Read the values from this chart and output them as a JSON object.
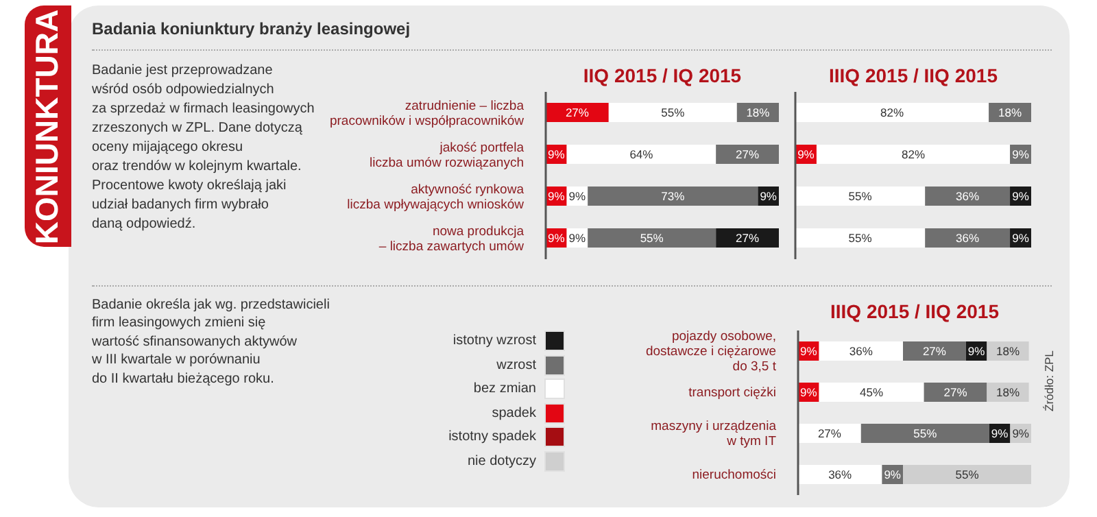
{
  "chart_data": [
    {
      "type": "bar",
      "orientation": "horizontal",
      "stacked": true,
      "title": "IIQ 2015 / IQ 2015",
      "tick_labels": "y",
      "xlim": [
        0,
        100
      ],
      "annotations": [
        "KONIUNKTURA",
        "Badania koniunktury branży leasingowej",
        "Badanie jest przeprowadzane\nwśród osób odpowiedzialnych\nza sprzedaż w firmach leasingowych\nzrzeszonych w ZPL. Dane dotyczą\noceny mijającego okresu\noraz trendów w kolejnym kwartale.\nProcentowe kwoty określają jaki\nudział badanych firm wybrało\ndaną odpowiedź."
      ],
      "categories": [
        "zatrudnienie – liczba\npracowników i współpracowników",
        "jakość portfela\nliczba umów rozwiązanych",
        "aktywność rynkowa\nliczba wpływających wniosków",
        "nowa produkcja\n– liczba zawartych umów"
      ],
      "series": [
        {
          "color": "#e30613",
          "values": [
            27,
            9,
            9,
            9
          ],
          "value_labels": [
            "27%",
            "9%",
            "9%",
            "9%"
          ]
        },
        {
          "color": "#ffffff",
          "values": [
            55,
            64,
            9,
            9
          ],
          "value_labels": [
            "55%",
            "64%",
            "9%",
            "9%"
          ]
        },
        {
          "color": "#6f6f6f",
          "values": [
            18,
            27,
            73,
            55
          ],
          "value_labels": [
            "18%",
            "27%",
            "73%",
            "55%"
          ]
        },
        {
          "color": "#1a1a1a",
          "values": [
            null,
            null,
            9,
            27
          ],
          "value_labels": [
            null,
            null,
            "9%",
            "27%"
          ]
        }
      ]
    },
    {
      "type": "bar",
      "orientation": "horizontal",
      "stacked": true,
      "title": "IIIQ 2015 / IIQ 2015",
      "tick_labels": false,
      "xlim": [
        0,
        100
      ],
      "categories": [
        null,
        null,
        null,
        null
      ],
      "series": [
        {
          "color": "#e30613",
          "values": [
            null,
            9,
            null,
            null
          ],
          "value_labels": [
            null,
            "9%",
            null,
            null
          ]
        },
        {
          "color": "#ffffff",
          "values": [
            82,
            82,
            55,
            55
          ],
          "value_labels": [
            "82%",
            "82%",
            "55%",
            "55%"
          ]
        },
        {
          "color": "#6f6f6f",
          "values": [
            18,
            9,
            36,
            36
          ],
          "value_labels": [
            "18%",
            "9%",
            "36%",
            "36%"
          ]
        },
        {
          "color": "#1a1a1a",
          "values": [
            null,
            null,
            9,
            9
          ],
          "value_labels": [
            null,
            null,
            "9%",
            "9%"
          ]
        }
      ]
    },
    {
      "type": "bar",
      "orientation": "horizontal",
      "stacked": true,
      "title": "IIIQ 2015 / IIQ 2015",
      "tick_labels": "y",
      "xlim": [
        0,
        100
      ],
      "legend": "left",
      "annotations": [
        "Badanie określa jak wg. przedstawicieli\nfirm leasingowych zmieni się\nwartość sfinansowanych aktywów\nw III kwartale w porównaniu\ndo II kwartału bieżącego roku.",
        "Źródło: ZPL"
      ],
      "categories": [
        "pojazdy osobowe,\ndostawcze i ciężarowe\ndo 3,5 t",
        "transport ciężki",
        "maszyny i urządzenia\nw tym IT",
        "nieruchomości"
      ],
      "series": [
        {
          "name": "istotny spadek",
          "color": "#a50d12",
          "values": [
            null,
            null,
            null,
            null
          ],
          "value_labels": [
            null,
            null,
            null,
            null
          ]
        },
        {
          "name": "spadek",
          "color": "#e30613",
          "values": [
            9,
            9,
            null,
            null
          ],
          "value_labels": [
            "9%",
            "9%",
            null,
            null
          ]
        },
        {
          "name": "bez zmian",
          "color": "#ffffff",
          "values": [
            36,
            45,
            27,
            36
          ],
          "value_labels": [
            "36%",
            "45%",
            "27%",
            "36%"
          ]
        },
        {
          "name": "wzrost",
          "color": "#6f6f6f",
          "values": [
            27,
            27,
            55,
            9
          ],
          "value_labels": [
            "27%",
            "27%",
            "55%",
            "9%"
          ]
        },
        {
          "name": "istotny wzrost",
          "color": "#1a1a1a",
          "values": [
            9,
            null,
            9,
            null
          ],
          "value_labels": [
            "9%",
            null,
            "9%",
            null
          ]
        },
        {
          "name": "nie dotyczy",
          "color": "#cfcfcf",
          "values": [
            18,
            18,
            9,
            55
          ],
          "value_labels": [
            "18%",
            "18%",
            "9%",
            "55%"
          ]
        }
      ]
    }
  ]
}
